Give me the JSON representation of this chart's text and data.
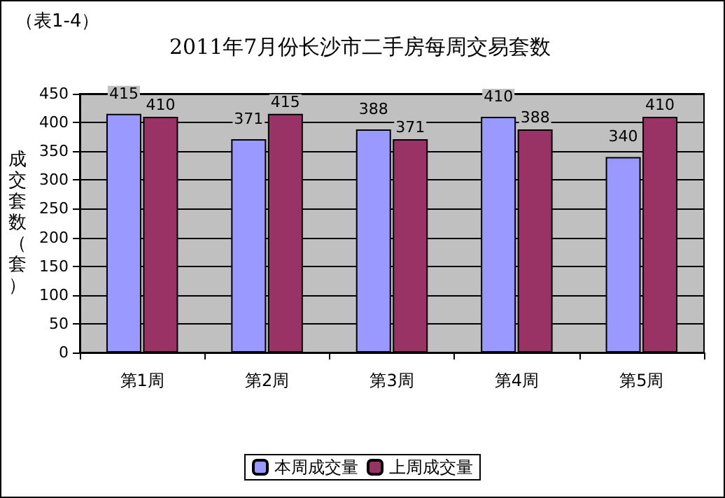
{
  "chart_data": {
    "type": "bar",
    "title": "2011年7月份长沙市二手房每周交易套数",
    "ylabel": "成交套数（套）",
    "annotations": [
      "（表1-4）"
    ],
    "categories": [
      "第1周",
      "第2周",
      "第3周",
      "第4周",
      "第5周"
    ],
    "series": [
      {
        "name": "本周成交量",
        "color": "#9999ff",
        "values": [
          415,
          371,
          388,
          410,
          340
        ]
      },
      {
        "name": "上周成交量",
        "color": "#993366",
        "values": [
          410,
          415,
          371,
          388,
          410
        ]
      }
    ],
    "ylim": [
      0,
      450
    ],
    "yticks": [
      0,
      50,
      100,
      150,
      200,
      250,
      300,
      350,
      400,
      450
    ],
    "grid": "y",
    "legend": "bottom",
    "data_labels": true
  }
}
